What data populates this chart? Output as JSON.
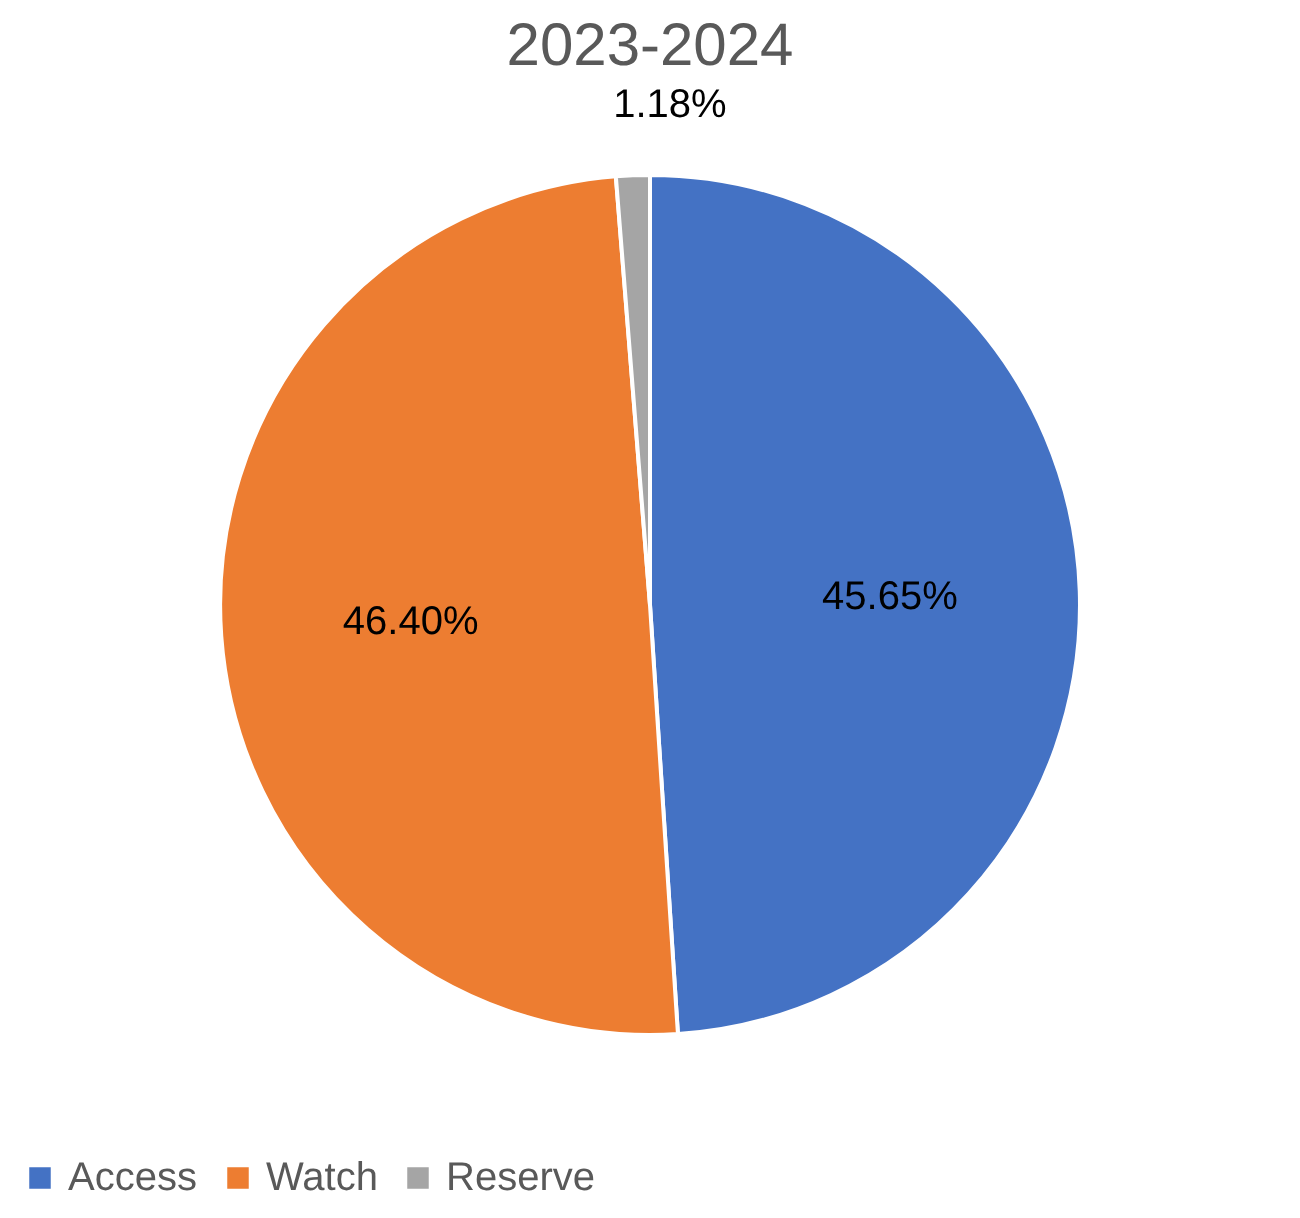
{
  "chart_data": {
    "type": "pie",
    "title": "2023-2024",
    "categories": [
      "Access",
      "Watch",
      "Reserve"
    ],
    "values": [
      45.65,
      46.4,
      1.18
    ],
    "value_labels": [
      "45.65%",
      "46.40%",
      "1.18%"
    ],
    "colors": [
      "#4472c4",
      "#ed7d31",
      "#a5a5a5"
    ],
    "legend": "bottom"
  }
}
